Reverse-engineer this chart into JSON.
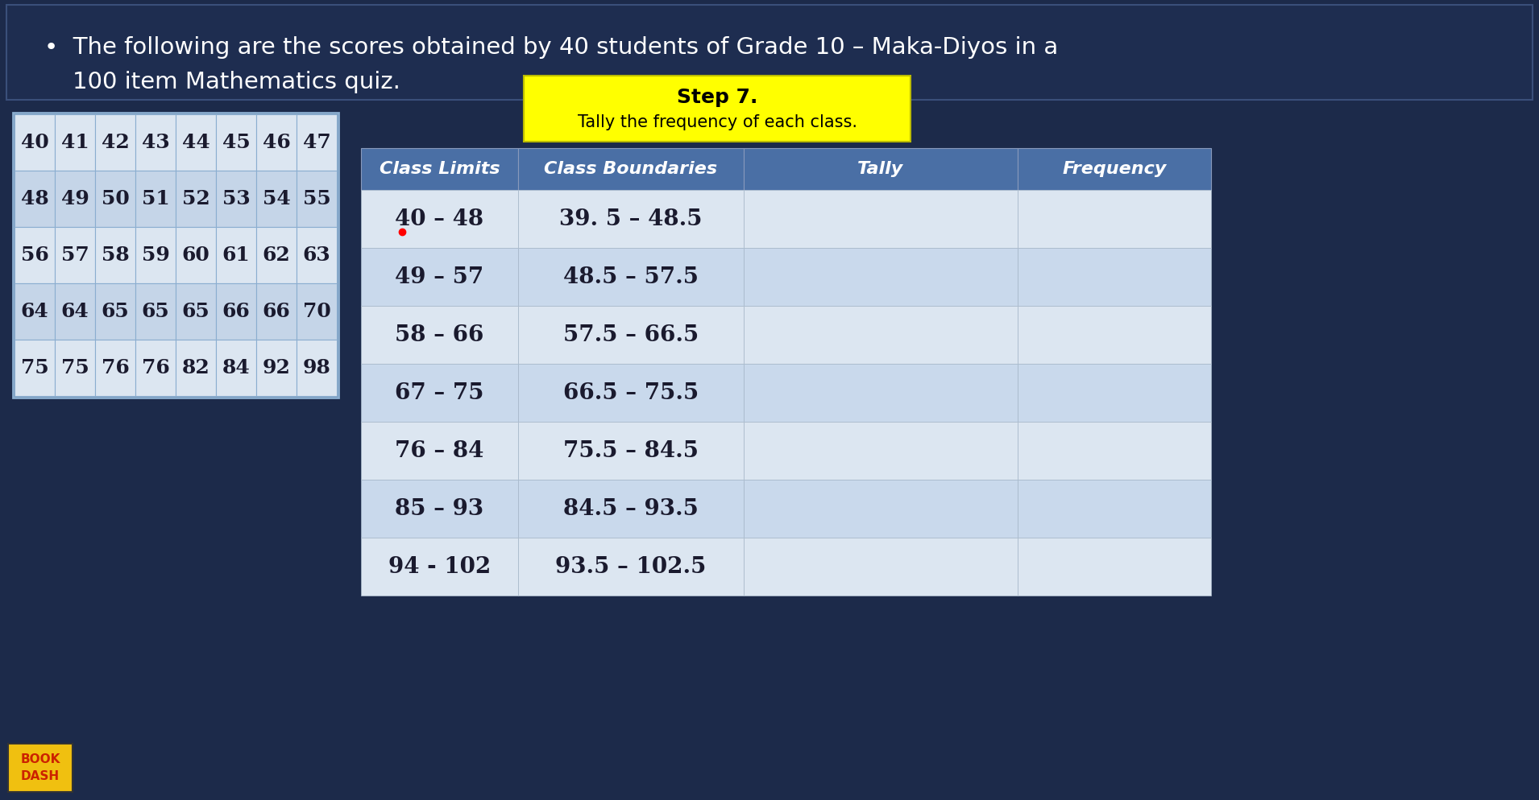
{
  "title_line1": "The following are the scores obtained by 40 students of Grade 10 – Maka-Diyos in a",
  "title_line2": "100 item Mathematics quiz.",
  "bg_color": "#1c2a4a",
  "title_bg": "#1e2d50",
  "title_text_color": "#ffffff",
  "bullet": "•",
  "grid_data": [
    [
      40,
      41,
      42,
      43,
      44,
      45,
      46,
      47
    ],
    [
      48,
      49,
      50,
      51,
      52,
      53,
      54,
      55
    ],
    [
      56,
      57,
      58,
      59,
      60,
      61,
      62,
      63
    ],
    [
      64,
      64,
      65,
      65,
      65,
      66,
      66,
      70
    ],
    [
      75,
      75,
      76,
      76,
      82,
      84,
      92,
      98
    ]
  ],
  "grid_cell_colors": [
    "#dce6f1",
    "#c5d5e8"
  ],
  "grid_border_color": "#8baed0",
  "grid_text_color": "#1a1a2e",
  "step_box_color": "#ffff00",
  "step_line1": "Step 7.",
  "step_line2": "Tally the frequency of each class.",
  "step_text_color": "#000000",
  "table_header_bg": "#4a6fa5",
  "table_header_text": "#ffffff",
  "table_headers": [
    "Class Limits",
    "Class Boundaries",
    "Tally",
    "Frequency"
  ],
  "table_rows": [
    [
      "40 – 48",
      "39. 5 – 48.5",
      "",
      ""
    ],
    [
      "49 – 57",
      "48.5 – 57.5",
      "",
      ""
    ],
    [
      "58 – 66",
      "57.5 – 66.5",
      "",
      ""
    ],
    [
      "67 – 75",
      "66.5 – 75.5",
      "",
      ""
    ],
    [
      "76 – 84",
      "75.5 – 84.5",
      "",
      ""
    ],
    [
      "85 – 93",
      "84.5 – 93.5",
      "",
      ""
    ],
    [
      "94 - 102",
      "93.5 – 102.5",
      "",
      ""
    ]
  ],
  "table_row_even": "#dce6f1",
  "table_row_odd": "#c9d9ec",
  "table_text_color": "#1a1a2e"
}
